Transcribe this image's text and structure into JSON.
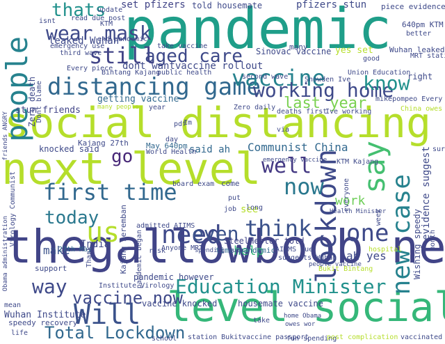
{
  "words": [
    {
      "id": "pandemic",
      "text": "pandemic",
      "color": "#1f9e89"
    },
    {
      "id": "social-distancing",
      "text": "social distancing",
      "color": "#b5de2b"
    },
    {
      "id": "thegallowboob-next",
      "text": "thegallowboob next",
      "color": "#414487"
    },
    {
      "id": "next-level",
      "text": "next level",
      "color": "#b5de2b"
    },
    {
      "id": "level-social",
      "text": "level social",
      "color": "#35b779"
    },
    {
      "id": "distancing-game",
      "text": "distancing game",
      "color": "#31688e"
    },
    {
      "id": "people",
      "text": "people",
      "color": "#26828e"
    },
    {
      "id": "vaccine",
      "text": "vaccine",
      "color": "#26828e"
    },
    {
      "id": "working-home",
      "text": "working home",
      "color": "#3e4989"
    },
    {
      "id": "first-time",
      "text": "first time",
      "color": "#31688e"
    },
    {
      "id": "new-case",
      "text": "new case",
      "color": "#26828e"
    },
    {
      "id": "lockdown",
      "text": "lockdown",
      "color": "#3e4989"
    },
    {
      "id": "education-minister",
      "text": "Education Minister",
      "color": "#21918c"
    },
    {
      "id": "will",
      "text": "Will",
      "color": "#3b528b"
    },
    {
      "id": "total-lockdown",
      "text": "Total Lockdown",
      "color": "#31688e"
    },
    {
      "id": "wear-mask",
      "text": "wear mask",
      "color": "#3e4989"
    },
    {
      "id": "thats",
      "text": "thats",
      "color": "#21918c"
    },
    {
      "id": "still",
      "text": "still",
      "color": "#414487"
    },
    {
      "id": "aged-care",
      "text": "aged care",
      "color": "#3e4989"
    },
    {
      "id": "know",
      "text": "know",
      "color": "#21918c"
    },
    {
      "id": "need",
      "text": "need",
      "color": "#3e4989"
    },
    {
      "id": "think",
      "text": "think",
      "color": "#3b528b"
    },
    {
      "id": "one",
      "text": "one",
      "color": "#3e4989"
    },
    {
      "id": "say",
      "text": "say",
      "color": "#44bf70"
    },
    {
      "id": "us",
      "text": "us",
      "color": "#b5de2b"
    },
    {
      "id": "today",
      "text": "today",
      "color": "#2a788e"
    },
    {
      "id": "well",
      "text": "well",
      "color": "#443983"
    },
    {
      "id": "now",
      "text": "now",
      "color": "#2a788e"
    },
    {
      "id": "way",
      "text": "way",
      "color": "#3e4989"
    },
    {
      "id": "vaccine-now",
      "text": "vaccine now",
      "color": "#3e4989"
    },
    {
      "id": "even",
      "text": "even",
      "color": "#3b528b"
    },
    {
      "id": "go",
      "text": "go",
      "color": "#482878"
    },
    {
      "id": "last-year",
      "text": "last year",
      "color": "#7ad151"
    },
    {
      "id": "communist-china",
      "text": "Communist China",
      "color": "#31688e"
    },
    {
      "id": "pfizers-stun",
      "text": "pfizers stun",
      "color": "#3e4989"
    },
    {
      "id": "set-pfizers",
      "text": "set pfizers",
      "color": "#414487"
    },
    {
      "id": "told-housemate",
      "text": "told housemate",
      "color": "#3e4989"
    },
    {
      "id": "leaked-wuhan",
      "text": "leaked Wuhan",
      "color": "#3e4989"
    },
    {
      "id": "dont-wantvaccine-rollout",
      "text": "dont wantvaccine rollout",
      "color": "#3e4989"
    },
    {
      "id": "getting-vaccine",
      "text": "getting vaccine",
      "color": "#31688e"
    },
    {
      "id": "stun-friends",
      "text": "stun friends",
      "color": "#414487"
    },
    {
      "id": "make",
      "text": "make",
      "color": "#3b528b"
    },
    {
      "id": "india",
      "text": "India",
      "color": "#3e4989"
    },
    {
      "id": "help",
      "text": "help",
      "color": "#35b779"
    },
    {
      "id": "work",
      "text": "work",
      "color": "#6ece58"
    },
    {
      "id": "ah-yes",
      "text": "ah yes",
      "color": "#3e4989"
    },
    {
      "id": "wuhan-institute",
      "text": "Wuhan Institute",
      "color": "#3e4989"
    },
    {
      "id": "speedy-recovery",
      "text": "speedy recovery",
      "color": "#3e4989"
    },
    {
      "id": "vaccine-knocked",
      "text": "vaccine knocked",
      "color": "#3e4989"
    },
    {
      "id": "housemate-vaccine",
      "text": "housemate vaccine",
      "color": "#3e4989"
    },
    {
      "id": "steelhester-told",
      "text": "SteelHester told",
      "color": "#414487"
    },
    {
      "id": "said-ah",
      "text": "said ah",
      "color": "#31688e"
    },
    {
      "id": "see",
      "text": "see",
      "color": "#b5de2b"
    },
    {
      "id": "knocked-said",
      "text": "knocked said",
      "color": "#3e4989"
    },
    {
      "id": "time-pandemic",
      "text": "time pandemic",
      "color": "#31688e"
    },
    {
      "id": "yes-set",
      "text": "yes set",
      "color": "#b5de2b"
    },
    {
      "id": "sinovac-vaccine",
      "text": "Sinovac vaccine",
      "color": "#3e4989"
    },
    {
      "id": "zero-death",
      "text": "Zero death",
      "color": "#3e4989"
    },
    {
      "id": "640pm-ktm",
      "text": "640pm KTM",
      "color": "#3e4989"
    },
    {
      "id": "piece-evidence",
      "text": "piece evidence",
      "color": "#3e4989"
    },
    {
      "id": "wuhan-leaked",
      "text": "Wuhan leaked",
      "color": "#3e4989"
    },
    {
      "id": "institute-virology",
      "text": "Institute Virology",
      "color": "#3e4989"
    },
    {
      "id": "admitted-aiims",
      "text": "admitted AIIMS",
      "color": "#3e4989"
    },
    {
      "id": "kajang-27th",
      "text": "Kajang 27th",
      "color": "#3e4989"
    },
    {
      "id": "27th-may",
      "text": "27th May",
      "color": "#31688e"
    },
    {
      "id": "may-640pm",
      "text": "May 640pm",
      "color": "#31688e"
    },
    {
      "id": "world-health",
      "text": "World Health",
      "color": "#3e4989"
    },
    {
      "id": "anyone-mrt",
      "text": "Anyone MRT",
      "color": "#3e4989"
    },
    {
      "id": "aiims-due",
      "text": "AIIMS due",
      "color": "#3e4989"
    },
    {
      "id": "station-bukit",
      "text": "station Bukit",
      "color": "#3e4989"
    },
    {
      "id": "vaccine-passport",
      "text": "vaccine passport",
      "color": "#3e4989"
    },
    {
      "id": "home-obama",
      "text": "home Obama",
      "color": "#3e4989"
    },
    {
      "id": "owes-wor",
      "text": "owes wor",
      "color": "#3e4989"
    },
    {
      "id": "fun-spending",
      "text": "fun spending",
      "color": "#3e4989"
    },
    {
      "id": "post-complication",
      "text": "post complication",
      "color": "#b5de2b"
    },
    {
      "id": "vaccinated",
      "text": "vaccinated",
      "color": "#3e4989"
    },
    {
      "id": "school",
      "text": "school",
      "color": "#3e4989"
    },
    {
      "id": "support",
      "text": "support",
      "color": "#3e4989"
    },
    {
      "id": "bintang-kajang",
      "text": "Bintang Kajang",
      "color": "#3e4989"
    },
    {
      "id": "public-health",
      "text": "public health",
      "color": "#3e4989"
    },
    {
      "id": "second-wave",
      "text": "second wave",
      "color": "#3e4989"
    },
    {
      "id": "union-education",
      "text": "Union Education",
      "color": "#3e4989"
    },
    {
      "id": "snowden-ive",
      "text": "Snowden Ive",
      "color": "#3e4989"
    },
    {
      "id": "mikepompeo-every",
      "text": "mikepompeo Every",
      "color": "#3e4989"
    },
    {
      "id": "ive-working",
      "text": "Ive working",
      "color": "#3e4989"
    },
    {
      "id": "deaths-first",
      "text": "deaths first",
      "color": "#3e4989"
    },
    {
      "id": "china-owes",
      "text": "China owes",
      "color": "#b5de2b"
    },
    {
      "id": "ktm-kajang",
      "text": "KTM Kajang",
      "color": "#3e4989"
    },
    {
      "id": "wishing-speedy",
      "text": "Wishing speedy",
      "color": "#3e4989"
    },
    {
      "id": "evidence-suggest",
      "text": "evidence suggest",
      "color": "#3e4989"
    },
    {
      "id": "suggests-wuhan",
      "text": "suggests Wuhan",
      "color": "#3e4989"
    },
    {
      "id": "bukit-bintang",
      "text": "Bukit Bintang",
      "color": "#b5de2b"
    },
    {
      "id": "right",
      "text": "right",
      "color": "#3e4989"
    },
    {
      "id": "mrt-station",
      "text": "MRT station",
      "color": "#3e4989"
    },
    {
      "id": "good",
      "text": "good",
      "color": "#3e4989"
    },
    {
      "id": "many",
      "text": "many",
      "color": "#3e4989"
    },
    {
      "id": "zero-daily",
      "text": "Zero daily",
      "color": "#3e4989"
    },
    {
      "id": "kajang-seremban",
      "text": "Kajang Seremban",
      "color": "#3e4989"
    },
    {
      "id": "pandemic-began",
      "text": "pandemic began",
      "color": "#3e4989"
    },
    {
      "id": "pandemic-however",
      "text": "pandemic however",
      "color": "#3e4989"
    },
    {
      "id": "come",
      "text": "come",
      "color": "#3e4989"
    },
    {
      "id": "day",
      "text": "day",
      "color": "#3e4989"
    },
    {
      "id": "year",
      "text": "year",
      "color": "#3e4989"
    },
    {
      "id": "every-piece",
      "text": "Every piece",
      "color": "#3e4989"
    },
    {
      "id": "third-wave",
      "text": "third wave",
      "color": "#3e4989"
    },
    {
      "id": "dont-blame",
      "text": "Dont blame",
      "color": "#3e4989"
    },
    {
      "id": "ktm",
      "text": "KTM",
      "color": "#3e4989"
    },
    {
      "id": "board-exam",
      "text": "board exam",
      "color": "#3e4989"
    },
    {
      "id": "via",
      "text": "via",
      "color": "#3e4989"
    },
    {
      "id": "im",
      "text": "Im",
      "color": "#3e4989"
    },
    {
      "id": "everyone",
      "text": "everyone",
      "color": "#3e4989"
    },
    {
      "id": "thank",
      "text": "Thank",
      "color": "#3e4989"
    },
    {
      "id": "job",
      "text": "job",
      "color": "#3e4989"
    },
    {
      "id": "long",
      "text": "long",
      "color": "#3e4989"
    },
    {
      "id": "put",
      "text": "put",
      "color": "#3e4989"
    },
    {
      "id": "week",
      "text": "week",
      "color": "#3e4989"
    },
    {
      "id": "month",
      "text": "month",
      "color": "#3e4989"
    },
    {
      "id": "risk",
      "text": "risk",
      "color": "#3e4989"
    },
    {
      "id": "obama-administration",
      "text": "Obama administration",
      "color": "#3e4989"
    },
    {
      "id": "virology-communist",
      "text": "Virology Communist",
      "color": "#3e4989"
    },
    {
      "id": "friends-angry",
      "text": "friends ANGRY",
      "color": "#3e4989"
    },
    {
      "id": "life",
      "text": "life",
      "color": "#3e4989"
    },
    {
      "id": "end-pandemic",
      "text": "end pandemic",
      "color": "#3e4989"
    },
    {
      "id": "emergency-use",
      "text": "emergency use",
      "color": "#3e4989"
    },
    {
      "id": "read-due-post",
      "text": "read due post",
      "color": "#3e4989"
    },
    {
      "id": "isnt",
      "text": "isnt",
      "color": "#3e4989"
    },
    {
      "id": "update",
      "text": "update",
      "color": "#3e4989"
    },
    {
      "id": "take-vaccine",
      "text": "take vaccine",
      "color": "#3e4989"
    },
    {
      "id": "better",
      "text": "better",
      "color": "#3e4989"
    },
    {
      "id": "sure",
      "text": "sure",
      "color": "#3e4989"
    },
    {
      "id": "hospital",
      "text": "hospital",
      "color": "#b5de2b"
    },
    {
      "id": "health-minister",
      "text": "Health Minister",
      "color": "#3e4989"
    },
    {
      "id": "spending-much",
      "text": "spending much",
      "color": "#3e4989"
    },
    {
      "id": "emergency-vaccine",
      "text": "emergency vaccine",
      "color": "#3e4989"
    },
    {
      "id": "people-vaccine",
      "text": "people vaccine",
      "color": "#3e4989"
    },
    {
      "id": "pdf",
      "text": "pdf",
      "color": "#3e4989"
    },
    {
      "id": "take",
      "text": "take",
      "color": "#3e4989"
    },
    {
      "id": "mean",
      "text": "mean",
      "color": "#3e4989"
    },
    {
      "id": "many-people",
      "text": "many people",
      "color": "#b5de2b"
    }
  ]
}
